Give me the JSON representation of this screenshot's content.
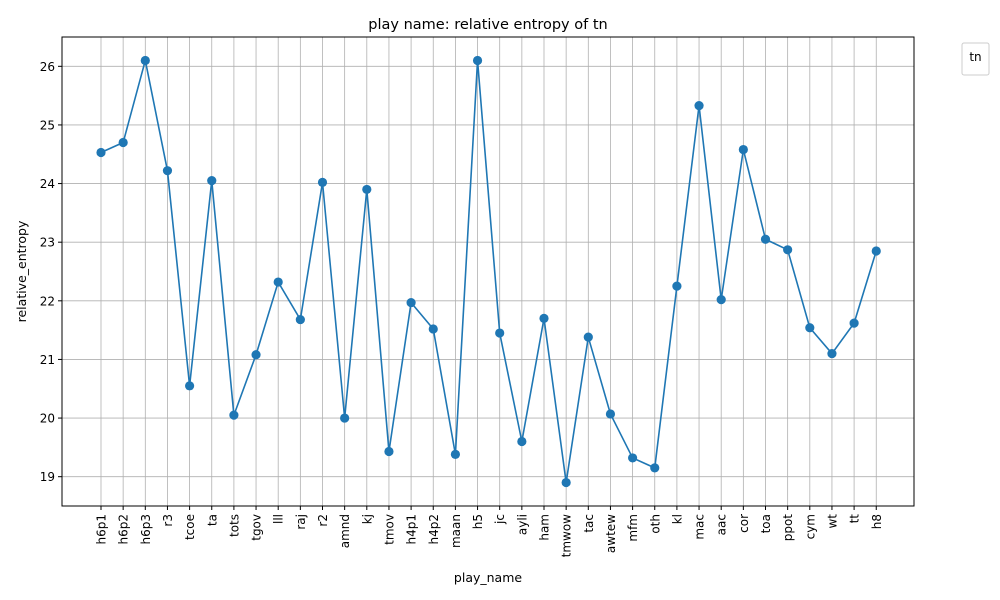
{
  "chart_data": {
    "type": "line",
    "title": "play name: relative entropy of tn",
    "xlabel": "play_name",
    "ylabel": "relative_entropy",
    "legend_title": "tn",
    "legend_position": "outside-top-right",
    "grid": true,
    "ylim": [
      18.5,
      26.5
    ],
    "yticks": [
      19,
      20,
      21,
      22,
      23,
      24,
      25,
      26
    ],
    "line_color": "#1f77b4",
    "categories": [
      "h6p1",
      "h6p2",
      "h6p3",
      "r3",
      "tcoe",
      "ta",
      "tots",
      "tgov",
      "lll",
      "raj",
      "r2",
      "amnd",
      "kj",
      "tmov",
      "h4p1",
      "h4p2",
      "maan",
      "h5",
      "jc",
      "ayli",
      "ham",
      "tmwow",
      "tac",
      "awtew",
      "mfm",
      "oth",
      "kl",
      "mac",
      "aac",
      "cor",
      "toa",
      "ppot",
      "cym",
      "wt",
      "tt",
      "h8"
    ],
    "series": [
      {
        "name": "",
        "values": [
          24.53,
          24.7,
          26.1,
          24.22,
          20.55,
          24.05,
          20.05,
          21.08,
          22.32,
          21.68,
          24.02,
          20.0,
          23.9,
          19.43,
          21.97,
          21.52,
          19.38,
          26.1,
          21.45,
          19.6,
          21.7,
          18.9,
          21.38,
          20.07,
          19.32,
          19.15,
          22.25,
          25.33,
          22.02,
          24.58,
          23.05,
          22.87,
          21.54,
          21.1,
          21.62,
          22.85
        ]
      }
    ]
  }
}
